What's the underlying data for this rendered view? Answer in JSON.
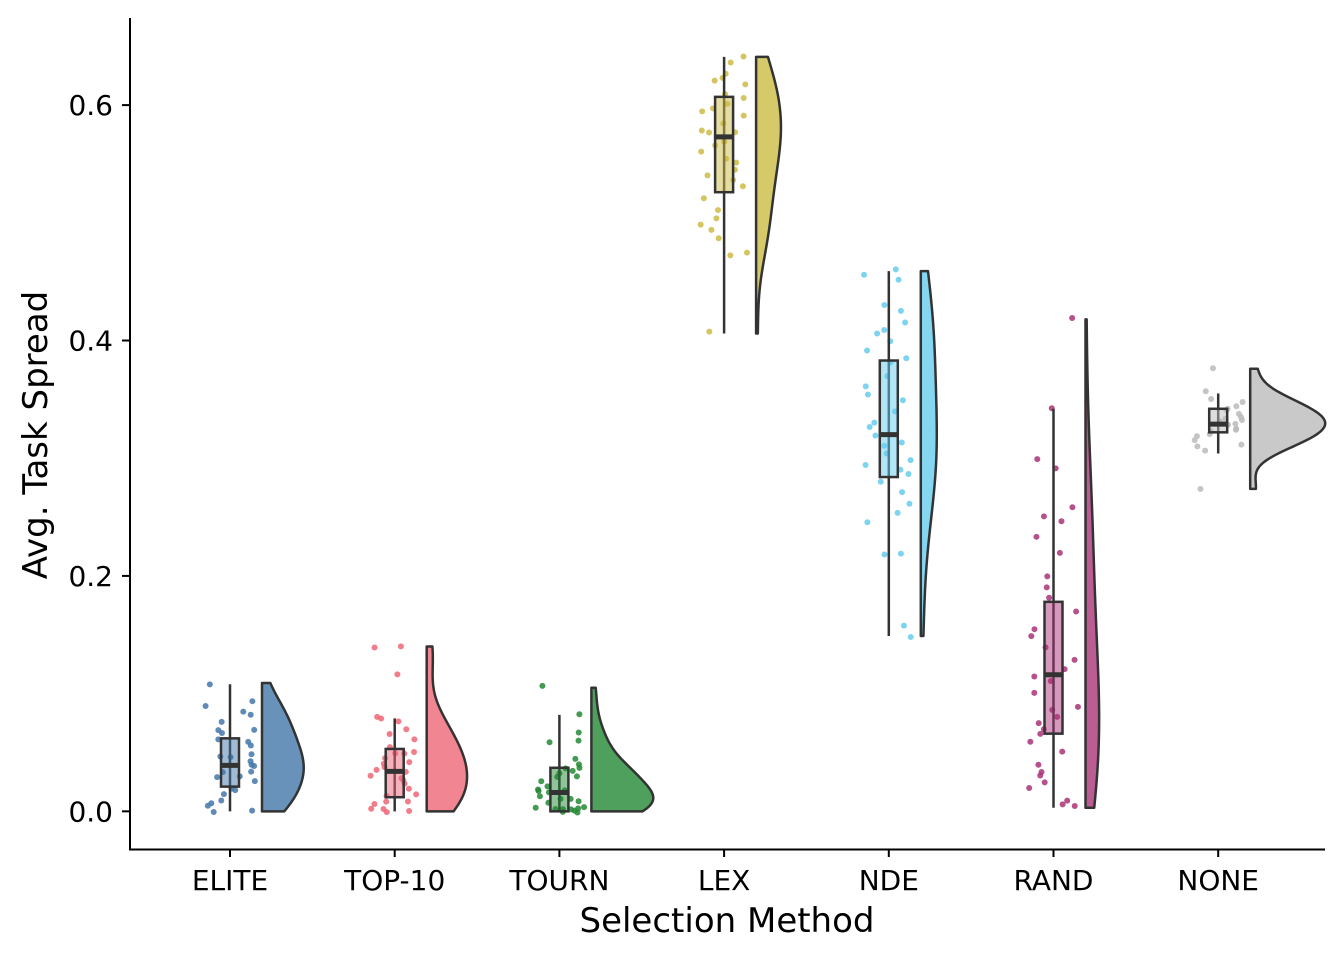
{
  "chart_data": {
    "type": "raincloud",
    "title": "",
    "xlabel": "Selection Method",
    "ylabel": "Avg. Task Spread",
    "ylim": [
      -0.032,
      0.674
    ],
    "yticks": [
      0.0,
      0.2,
      0.4,
      0.6
    ],
    "ytick_labels": [
      "0.0",
      "0.2",
      "0.4",
      "0.6"
    ],
    "grid": false,
    "legend": "none",
    "groups": [
      {
        "name": "ELITE",
        "color": "#4477AA",
        "box": {
          "q1": 0.021,
          "median": 0.039,
          "q3": 0.062,
          "whisker_low": 0.0,
          "whisker_high": 0.108
        },
        "points": [
          0.109,
          0.092,
          0.088,
          0.085,
          0.083,
          0.075,
          0.07,
          0.068,
          0.065,
          0.06,
          0.058,
          0.055,
          0.05,
          0.047,
          0.045,
          0.042,
          0.04,
          0.038,
          0.035,
          0.032,
          0.03,
          0.028,
          0.025,
          0.02,
          0.018,
          0.015,
          0.01,
          0.007,
          0.005,
          0.0,
          0.0
        ]
      },
      {
        "name": "TOP-10",
        "color": "#EE6677",
        "box": {
          "q1": 0.012,
          "median": 0.034,
          "q3": 0.053,
          "whisker_low": 0.0,
          "whisker_high": 0.079
        },
        "points": [
          0.14,
          0.138,
          0.115,
          0.08,
          0.078,
          0.075,
          0.07,
          0.065,
          0.06,
          0.055,
          0.052,
          0.05,
          0.048,
          0.045,
          0.042,
          0.04,
          0.038,
          0.035,
          0.032,
          0.03,
          0.028,
          0.025,
          0.022,
          0.02,
          0.015,
          0.012,
          0.01,
          0.008,
          0.005,
          0.003,
          0.002,
          0.001,
          0.0
        ]
      },
      {
        "name": "TOURN",
        "color": "#228833",
        "box": {
          "q1": 0.0,
          "median": 0.016,
          "q3": 0.037,
          "whisker_low": 0.0,
          "whisker_high": 0.082
        },
        "points": [
          0.105,
          0.083,
          0.066,
          0.06,
          0.058,
          0.045,
          0.04,
          0.038,
          0.036,
          0.035,
          0.033,
          0.03,
          0.028,
          0.025,
          0.022,
          0.02,
          0.018,
          0.016,
          0.015,
          0.012,
          0.01,
          0.01,
          0.008,
          0.006,
          0.005,
          0.004,
          0.003,
          0.002,
          0.001,
          0.0,
          0.0,
          0.0,
          0.0
        ]
      },
      {
        "name": "LEX",
        "color": "#CCBB44",
        "box": {
          "q1": 0.526,
          "median": 0.573,
          "q3": 0.607,
          "whisker_low": 0.406,
          "whisker_high": 0.641
        },
        "points": [
          0.641,
          0.635,
          0.628,
          0.624,
          0.62,
          0.618,
          0.61,
          0.605,
          0.6,
          0.598,
          0.595,
          0.59,
          0.585,
          0.58,
          0.578,
          0.575,
          0.573,
          0.57,
          0.565,
          0.56,
          0.555,
          0.55,
          0.545,
          0.54,
          0.535,
          0.53,
          0.52,
          0.512,
          0.505,
          0.5,
          0.495,
          0.487,
          0.475,
          0.472,
          0.406
        ]
      },
      {
        "name": "NDE",
        "color": "#66CCEE",
        "box": {
          "q1": 0.284,
          "median": 0.32,
          "q3": 0.383,
          "whisker_low": 0.149,
          "whisker_high": 0.459
        },
        "points": [
          0.459,
          0.455,
          0.45,
          0.43,
          0.425,
          0.415,
          0.41,
          0.405,
          0.4,
          0.39,
          0.385,
          0.38,
          0.37,
          0.36,
          0.355,
          0.35,
          0.34,
          0.33,
          0.325,
          0.32,
          0.315,
          0.31,
          0.305,
          0.3,
          0.295,
          0.29,
          0.285,
          0.28,
          0.27,
          0.26,
          0.255,
          0.245,
          0.22,
          0.218,
          0.158,
          0.149
        ]
      },
      {
        "name": "RAND",
        "color": "#AA3377",
        "box": {
          "q1": 0.066,
          "median": 0.116,
          "q3": 0.178,
          "whisker_low": 0.003,
          "whisker_high": 0.342
        },
        "points": [
          0.418,
          0.343,
          0.298,
          0.292,
          0.26,
          0.25,
          0.245,
          0.233,
          0.22,
          0.2,
          0.19,
          0.18,
          0.17,
          0.155,
          0.15,
          0.14,
          0.13,
          0.12,
          0.115,
          0.11,
          0.1,
          0.09,
          0.085,
          0.08,
          0.075,
          0.07,
          0.065,
          0.06,
          0.05,
          0.04,
          0.035,
          0.03,
          0.025,
          0.02,
          0.008,
          0.005,
          0.003
        ]
      },
      {
        "name": "NONE",
        "color": "#BBBBBB",
        "box": {
          "q1": 0.322,
          "median": 0.329,
          "q3": 0.342,
          "whisker_low": 0.304,
          "whisker_high": 0.355
        },
        "points": [
          0.376,
          0.356,
          0.35,
          0.348,
          0.345,
          0.342,
          0.34,
          0.338,
          0.336,
          0.334,
          0.332,
          0.33,
          0.329,
          0.328,
          0.326,
          0.324,
          0.322,
          0.32,
          0.318,
          0.315,
          0.312,
          0.31,
          0.306,
          0.274
        ]
      }
    ]
  }
}
